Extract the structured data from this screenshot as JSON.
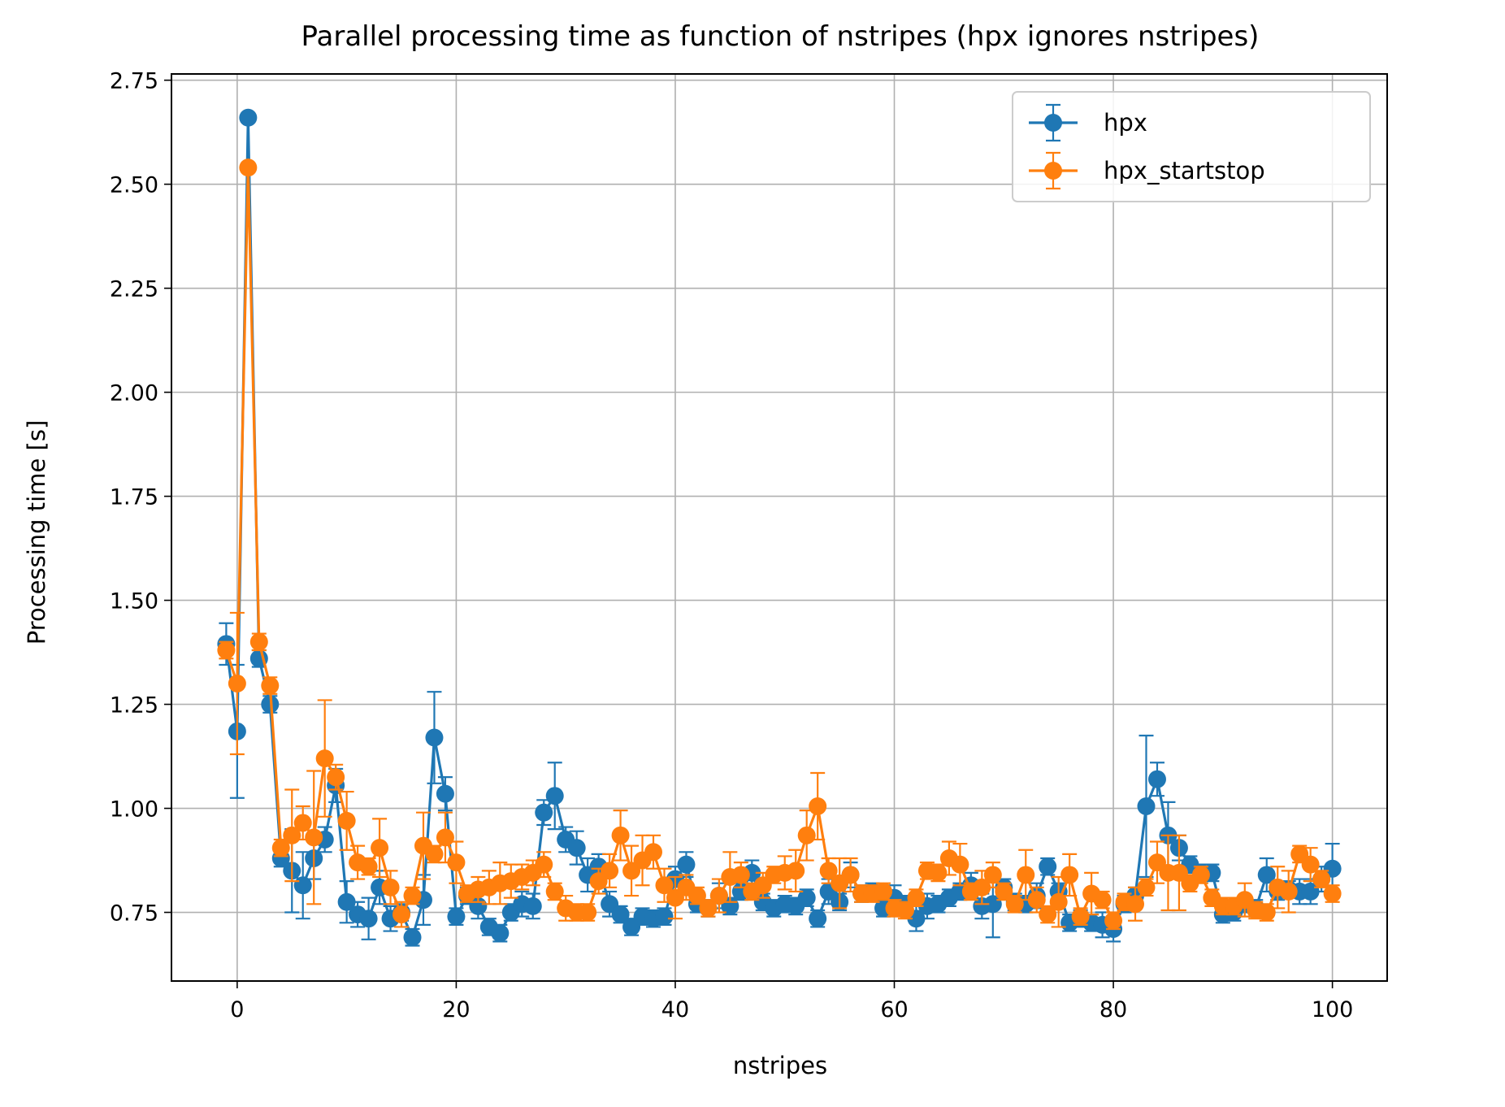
{
  "chart_data": {
    "type": "line",
    "title": "Parallel processing time as function of nstripes (hpx ignores nstripes)",
    "xlabel": "nstripes",
    "ylabel": "Processing time [s]",
    "xlim": [
      -6,
      105
    ],
    "ylim": [
      0.585,
      2.765
    ],
    "xticks": [
      0,
      20,
      40,
      60,
      80,
      100
    ],
    "xtick_labels": [
      "0",
      "20",
      "40",
      "60",
      "80",
      "100"
    ],
    "yticks": [
      0.75,
      1.0,
      1.25,
      1.5,
      1.75,
      2.0,
      2.25,
      2.5,
      2.75
    ],
    "ytick_labels": [
      "0.75",
      "1.00",
      "1.25",
      "1.50",
      "1.75",
      "2.00",
      "2.25",
      "2.50",
      "2.75"
    ],
    "grid": true,
    "legend_position": "top-right",
    "error_bars": true,
    "series": [
      {
        "name": "hpx",
        "color": "#1f77b4",
        "points": [
          [
            -1,
            1.395,
            0.05
          ],
          [
            0,
            1.185,
            0.16
          ],
          [
            1,
            2.66,
            0.01
          ],
          [
            2,
            1.36,
            0.02
          ],
          [
            3,
            1.25,
            0.02
          ],
          [
            4,
            0.88,
            0.02
          ],
          [
            5,
            0.85,
            0.1
          ],
          [
            6,
            0.815,
            0.08
          ],
          [
            7,
            0.88,
            0.05
          ],
          [
            8,
            0.925,
            0.03
          ],
          [
            9,
            1.055,
            0.04
          ],
          [
            10,
            0.775,
            0.05
          ],
          [
            11,
            0.745,
            0.03
          ],
          [
            12,
            0.735,
            0.05
          ],
          [
            13,
            0.81,
            0.04
          ],
          [
            14,
            0.735,
            0.03
          ],
          [
            15,
            0.75,
            0.02
          ],
          [
            16,
            0.69,
            0.02
          ],
          [
            17,
            0.78,
            0.06
          ],
          [
            18,
            1.17,
            0.11
          ],
          [
            19,
            1.035,
            0.04
          ],
          [
            20,
            0.74,
            0.02
          ],
          [
            21,
            0.79,
            0.02
          ],
          [
            22,
            0.765,
            0.03
          ],
          [
            23,
            0.715,
            0.02
          ],
          [
            24,
            0.7,
            0.02
          ],
          [
            25,
            0.75,
            0.02
          ],
          [
            26,
            0.77,
            0.03
          ],
          [
            27,
            0.765,
            0.03
          ],
          [
            28,
            0.99,
            0.03
          ],
          [
            29,
            1.03,
            0.08
          ],
          [
            30,
            0.925,
            0.03
          ],
          [
            31,
            0.905,
            0.04
          ],
          [
            32,
            0.84,
            0.04
          ],
          [
            33,
            0.86,
            0.03
          ],
          [
            34,
            0.77,
            0.03
          ],
          [
            35,
            0.745,
            0.02
          ],
          [
            36,
            0.715,
            0.02
          ],
          [
            37,
            0.74,
            0.02
          ],
          [
            38,
            0.735,
            0.02
          ],
          [
            39,
            0.74,
            0.02
          ],
          [
            40,
            0.83,
            0.03
          ],
          [
            41,
            0.865,
            0.03
          ],
          [
            42,
            0.77,
            0.02
          ],
          [
            43,
            0.76,
            0.02
          ],
          [
            44,
            0.79,
            0.03
          ],
          [
            45,
            0.765,
            0.02
          ],
          [
            46,
            0.8,
            0.02
          ],
          [
            47,
            0.845,
            0.03
          ],
          [
            48,
            0.775,
            0.02
          ],
          [
            49,
            0.76,
            0.02
          ],
          [
            50,
            0.77,
            0.02
          ],
          [
            51,
            0.765,
            0.02
          ],
          [
            52,
            0.785,
            0.02
          ],
          [
            53,
            0.735,
            0.02
          ],
          [
            54,
            0.8,
            0.03
          ],
          [
            55,
            0.775,
            0.02
          ],
          [
            56,
            0.84,
            0.03
          ],
          [
            57,
            0.795,
            0.02
          ],
          [
            58,
            0.8,
            0.02
          ],
          [
            59,
            0.76,
            0.02
          ],
          [
            60,
            0.785,
            0.03
          ],
          [
            61,
            0.77,
            0.02
          ],
          [
            62,
            0.735,
            0.03
          ],
          [
            63,
            0.765,
            0.03
          ],
          [
            64,
            0.77,
            0.02
          ],
          [
            65,
            0.785,
            0.02
          ],
          [
            66,
            0.8,
            0.02
          ],
          [
            67,
            0.815,
            0.03
          ],
          [
            68,
            0.765,
            0.03
          ],
          [
            69,
            0.77,
            0.08
          ],
          [
            70,
            0.81,
            0.02
          ],
          [
            71,
            0.775,
            0.02
          ],
          [
            72,
            0.77,
            0.02
          ],
          [
            73,
            0.79,
            0.03
          ],
          [
            74,
            0.86,
            0.02
          ],
          [
            75,
            0.8,
            0.02
          ],
          [
            76,
            0.725,
            0.02
          ],
          [
            77,
            0.735,
            0.02
          ],
          [
            78,
            0.725,
            0.02
          ],
          [
            79,
            0.72,
            0.03
          ],
          [
            80,
            0.71,
            0.03
          ],
          [
            81,
            0.77,
            0.02
          ],
          [
            82,
            0.79,
            0.02
          ],
          [
            83,
            1.005,
            0.17
          ],
          [
            84,
            1.07,
            0.04
          ],
          [
            85,
            0.935,
            0.08
          ],
          [
            86,
            0.905,
            0.03
          ],
          [
            87,
            0.865,
            0.02
          ],
          [
            88,
            0.845,
            0.02
          ],
          [
            89,
            0.845,
            0.02
          ],
          [
            90,
            0.745,
            0.02
          ],
          [
            91,
            0.75,
            0.02
          ],
          [
            92,
            0.77,
            0.02
          ],
          [
            93,
            0.76,
            0.02
          ],
          [
            94,
            0.84,
            0.04
          ],
          [
            95,
            0.8,
            0.02
          ],
          [
            96,
            0.805,
            0.02
          ],
          [
            97,
            0.8,
            0.03
          ],
          [
            98,
            0.8,
            0.03
          ],
          [
            99,
            0.83,
            0.03
          ],
          [
            100,
            0.855,
            0.06
          ]
        ]
      },
      {
        "name": "hpx_startstop",
        "color": "#ff7f0e",
        "points": [
          [
            -1,
            1.38,
            0.02
          ],
          [
            0,
            1.3,
            0.17
          ],
          [
            1,
            2.54,
            0.01
          ],
          [
            2,
            1.4,
            0.02
          ],
          [
            3,
            1.295,
            0.02
          ],
          [
            4,
            0.905,
            0.02
          ],
          [
            5,
            0.935,
            0.11
          ],
          [
            6,
            0.965,
            0.04
          ],
          [
            7,
            0.93,
            0.16
          ],
          [
            8,
            1.12,
            0.14
          ],
          [
            9,
            1.075,
            0.03
          ],
          [
            10,
            0.97,
            0.07
          ],
          [
            11,
            0.87,
            0.04
          ],
          [
            12,
            0.86,
            0.02
          ],
          [
            13,
            0.905,
            0.07
          ],
          [
            14,
            0.81,
            0.04
          ],
          [
            15,
            0.745,
            0.03
          ],
          [
            16,
            0.79,
            0.02
          ],
          [
            17,
            0.91,
            0.08
          ],
          [
            18,
            0.89,
            0.02
          ],
          [
            19,
            0.93,
            0.06
          ],
          [
            20,
            0.87,
            0.05
          ],
          [
            21,
            0.795,
            0.02
          ],
          [
            22,
            0.805,
            0.03
          ],
          [
            23,
            0.81,
            0.04
          ],
          [
            24,
            0.82,
            0.05
          ],
          [
            25,
            0.825,
            0.04
          ],
          [
            26,
            0.835,
            0.03
          ],
          [
            27,
            0.845,
            0.03
          ],
          [
            28,
            0.865,
            0.03
          ],
          [
            29,
            0.8,
            0.02
          ],
          [
            30,
            0.76,
            0.03
          ],
          [
            31,
            0.75,
            0.02
          ],
          [
            32,
            0.75,
            0.02
          ],
          [
            33,
            0.825,
            0.03
          ],
          [
            34,
            0.85,
            0.04
          ],
          [
            35,
            0.935,
            0.06
          ],
          [
            36,
            0.85,
            0.06
          ],
          [
            37,
            0.875,
            0.06
          ],
          [
            38,
            0.895,
            0.04
          ],
          [
            39,
            0.815,
            0.04
          ],
          [
            40,
            0.785,
            0.05
          ],
          [
            41,
            0.81,
            0.03
          ],
          [
            42,
            0.79,
            0.02
          ],
          [
            43,
            0.76,
            0.02
          ],
          [
            44,
            0.79,
            0.04
          ],
          [
            45,
            0.835,
            0.06
          ],
          [
            46,
            0.84,
            0.03
          ],
          [
            47,
            0.8,
            0.02
          ],
          [
            48,
            0.815,
            0.03
          ],
          [
            49,
            0.84,
            0.02
          ],
          [
            50,
            0.845,
            0.04
          ],
          [
            51,
            0.85,
            0.05
          ],
          [
            52,
            0.935,
            0.06
          ],
          [
            53,
            1.005,
            0.08
          ],
          [
            54,
            0.85,
            0.03
          ],
          [
            55,
            0.82,
            0.06
          ],
          [
            56,
            0.84,
            0.04
          ],
          [
            57,
            0.795,
            0.02
          ],
          [
            58,
            0.795,
            0.02
          ],
          [
            59,
            0.8,
            0.02
          ],
          [
            60,
            0.76,
            0.02
          ],
          [
            61,
            0.755,
            0.02
          ],
          [
            62,
            0.785,
            0.02
          ],
          [
            63,
            0.85,
            0.02
          ],
          [
            64,
            0.845,
            0.02
          ],
          [
            65,
            0.88,
            0.04
          ],
          [
            66,
            0.865,
            0.05
          ],
          [
            67,
            0.8,
            0.02
          ],
          [
            68,
            0.81,
            0.04
          ],
          [
            69,
            0.84,
            0.03
          ],
          [
            70,
            0.8,
            0.02
          ],
          [
            71,
            0.77,
            0.02
          ],
          [
            72,
            0.84,
            0.06
          ],
          [
            73,
            0.78,
            0.03
          ],
          [
            74,
            0.745,
            0.02
          ],
          [
            75,
            0.775,
            0.06
          ],
          [
            76,
            0.84,
            0.05
          ],
          [
            77,
            0.74,
            0.02
          ],
          [
            78,
            0.795,
            0.05
          ],
          [
            79,
            0.78,
            0.02
          ],
          [
            80,
            0.73,
            0.02
          ],
          [
            81,
            0.775,
            0.02
          ],
          [
            82,
            0.77,
            0.04
          ],
          [
            83,
            0.81,
            0.02
          ],
          [
            84,
            0.87,
            0.05
          ],
          [
            85,
            0.845,
            0.09
          ],
          [
            86,
            0.845,
            0.09
          ],
          [
            87,
            0.82,
            0.02
          ],
          [
            88,
            0.84,
            0.02
          ],
          [
            89,
            0.785,
            0.02
          ],
          [
            90,
            0.765,
            0.02
          ],
          [
            91,
            0.765,
            0.02
          ],
          [
            92,
            0.78,
            0.04
          ],
          [
            93,
            0.755,
            0.02
          ],
          [
            94,
            0.75,
            0.02
          ],
          [
            95,
            0.81,
            0.05
          ],
          [
            96,
            0.8,
            0.05
          ],
          [
            97,
            0.89,
            0.02
          ],
          [
            98,
            0.865,
            0.04
          ],
          [
            99,
            0.83,
            0.02
          ],
          [
            100,
            0.795,
            0.02
          ]
        ]
      }
    ]
  }
}
